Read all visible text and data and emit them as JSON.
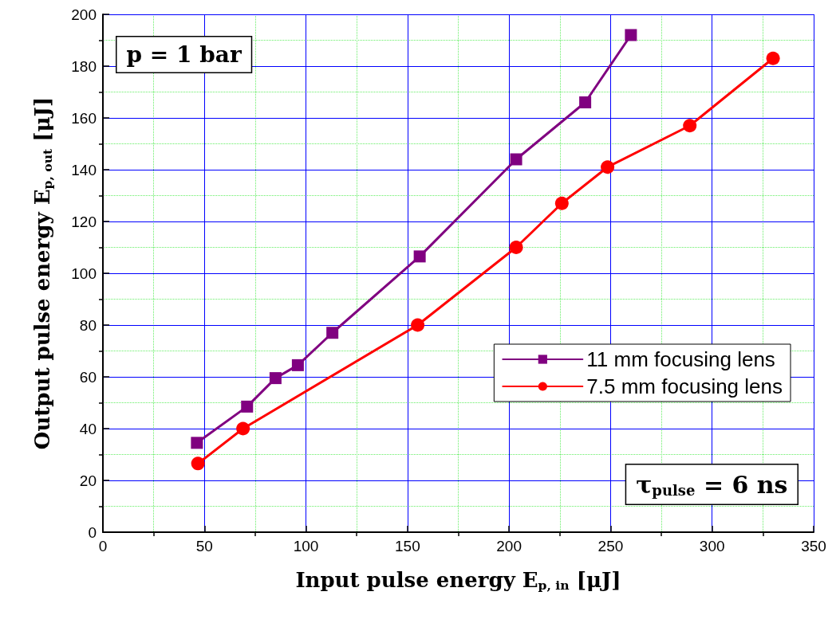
{
  "chart_data": {
    "type": "line",
    "xlabel": "Input pulse energy E$_{p, in}$ [μJ]",
    "ylabel": "Output pulse energy E$_{p, out}$ [μJ]",
    "xlim": [
      0,
      350
    ],
    "xticks": [
      0,
      {
        "value": 25,
        "label": null
      },
      50,
      {
        "value": 75,
        "label": null
      },
      100,
      {
        "value": 125,
        "label": null
      },
      150,
      {
        "value": 175,
        "label": null
      },
      200,
      {
        "value": 225,
        "label": null
      },
      250,
      {
        "value": 275,
        "label": null
      },
      300,
      {
        "value": 325,
        "label": null
      },
      350
    ],
    "ylim": [
      0,
      200
    ],
    "yticks": [
      0,
      {
        "value": 10,
        "label": null
      },
      20,
      {
        "value": 30,
        "label": null
      },
      40,
      {
        "value": 50,
        "label": null
      },
      60,
      {
        "value": 70,
        "label": null
      },
      80,
      {
        "value": 90,
        "label": null
      },
      100,
      {
        "value": 110,
        "label": null
      },
      120,
      {
        "value": 130,
        "label": null
      },
      140,
      {
        "value": 150,
        "label": null
      },
      160,
      {
        "value": 170,
        "label": null
      },
      180,
      {
        "value": 190,
        "label": null
      },
      200
    ],
    "grid": true,
    "legend": "right",
    "line_style": "solid",
    "annotations": [
      "p = 1 bar",
      "τ$_{pulse}$ = 6 ns"
    ],
    "series": [
      {
        "name": "11 mm focusing lens",
        "color": "#800080",
        "marker": "square",
        "x": [
          46.3,
          71,
          85,
          96,
          113,
          156,
          203.5,
          237.5,
          260
        ],
        "values": [
          34.5,
          48.5,
          59.5,
          64.5,
          77,
          106.5,
          144,
          166,
          192
        ]
      },
      {
        "name": "7.5 mm focusing lens",
        "color": "#ff0000",
        "marker": "circle",
        "x": [
          46.8,
          69,
          155,
          203.5,
          226,
          248.5,
          289,
          330
        ],
        "values": [
          26.5,
          40,
          80,
          110,
          127,
          141,
          157,
          183
        ]
      }
    ]
  }
}
